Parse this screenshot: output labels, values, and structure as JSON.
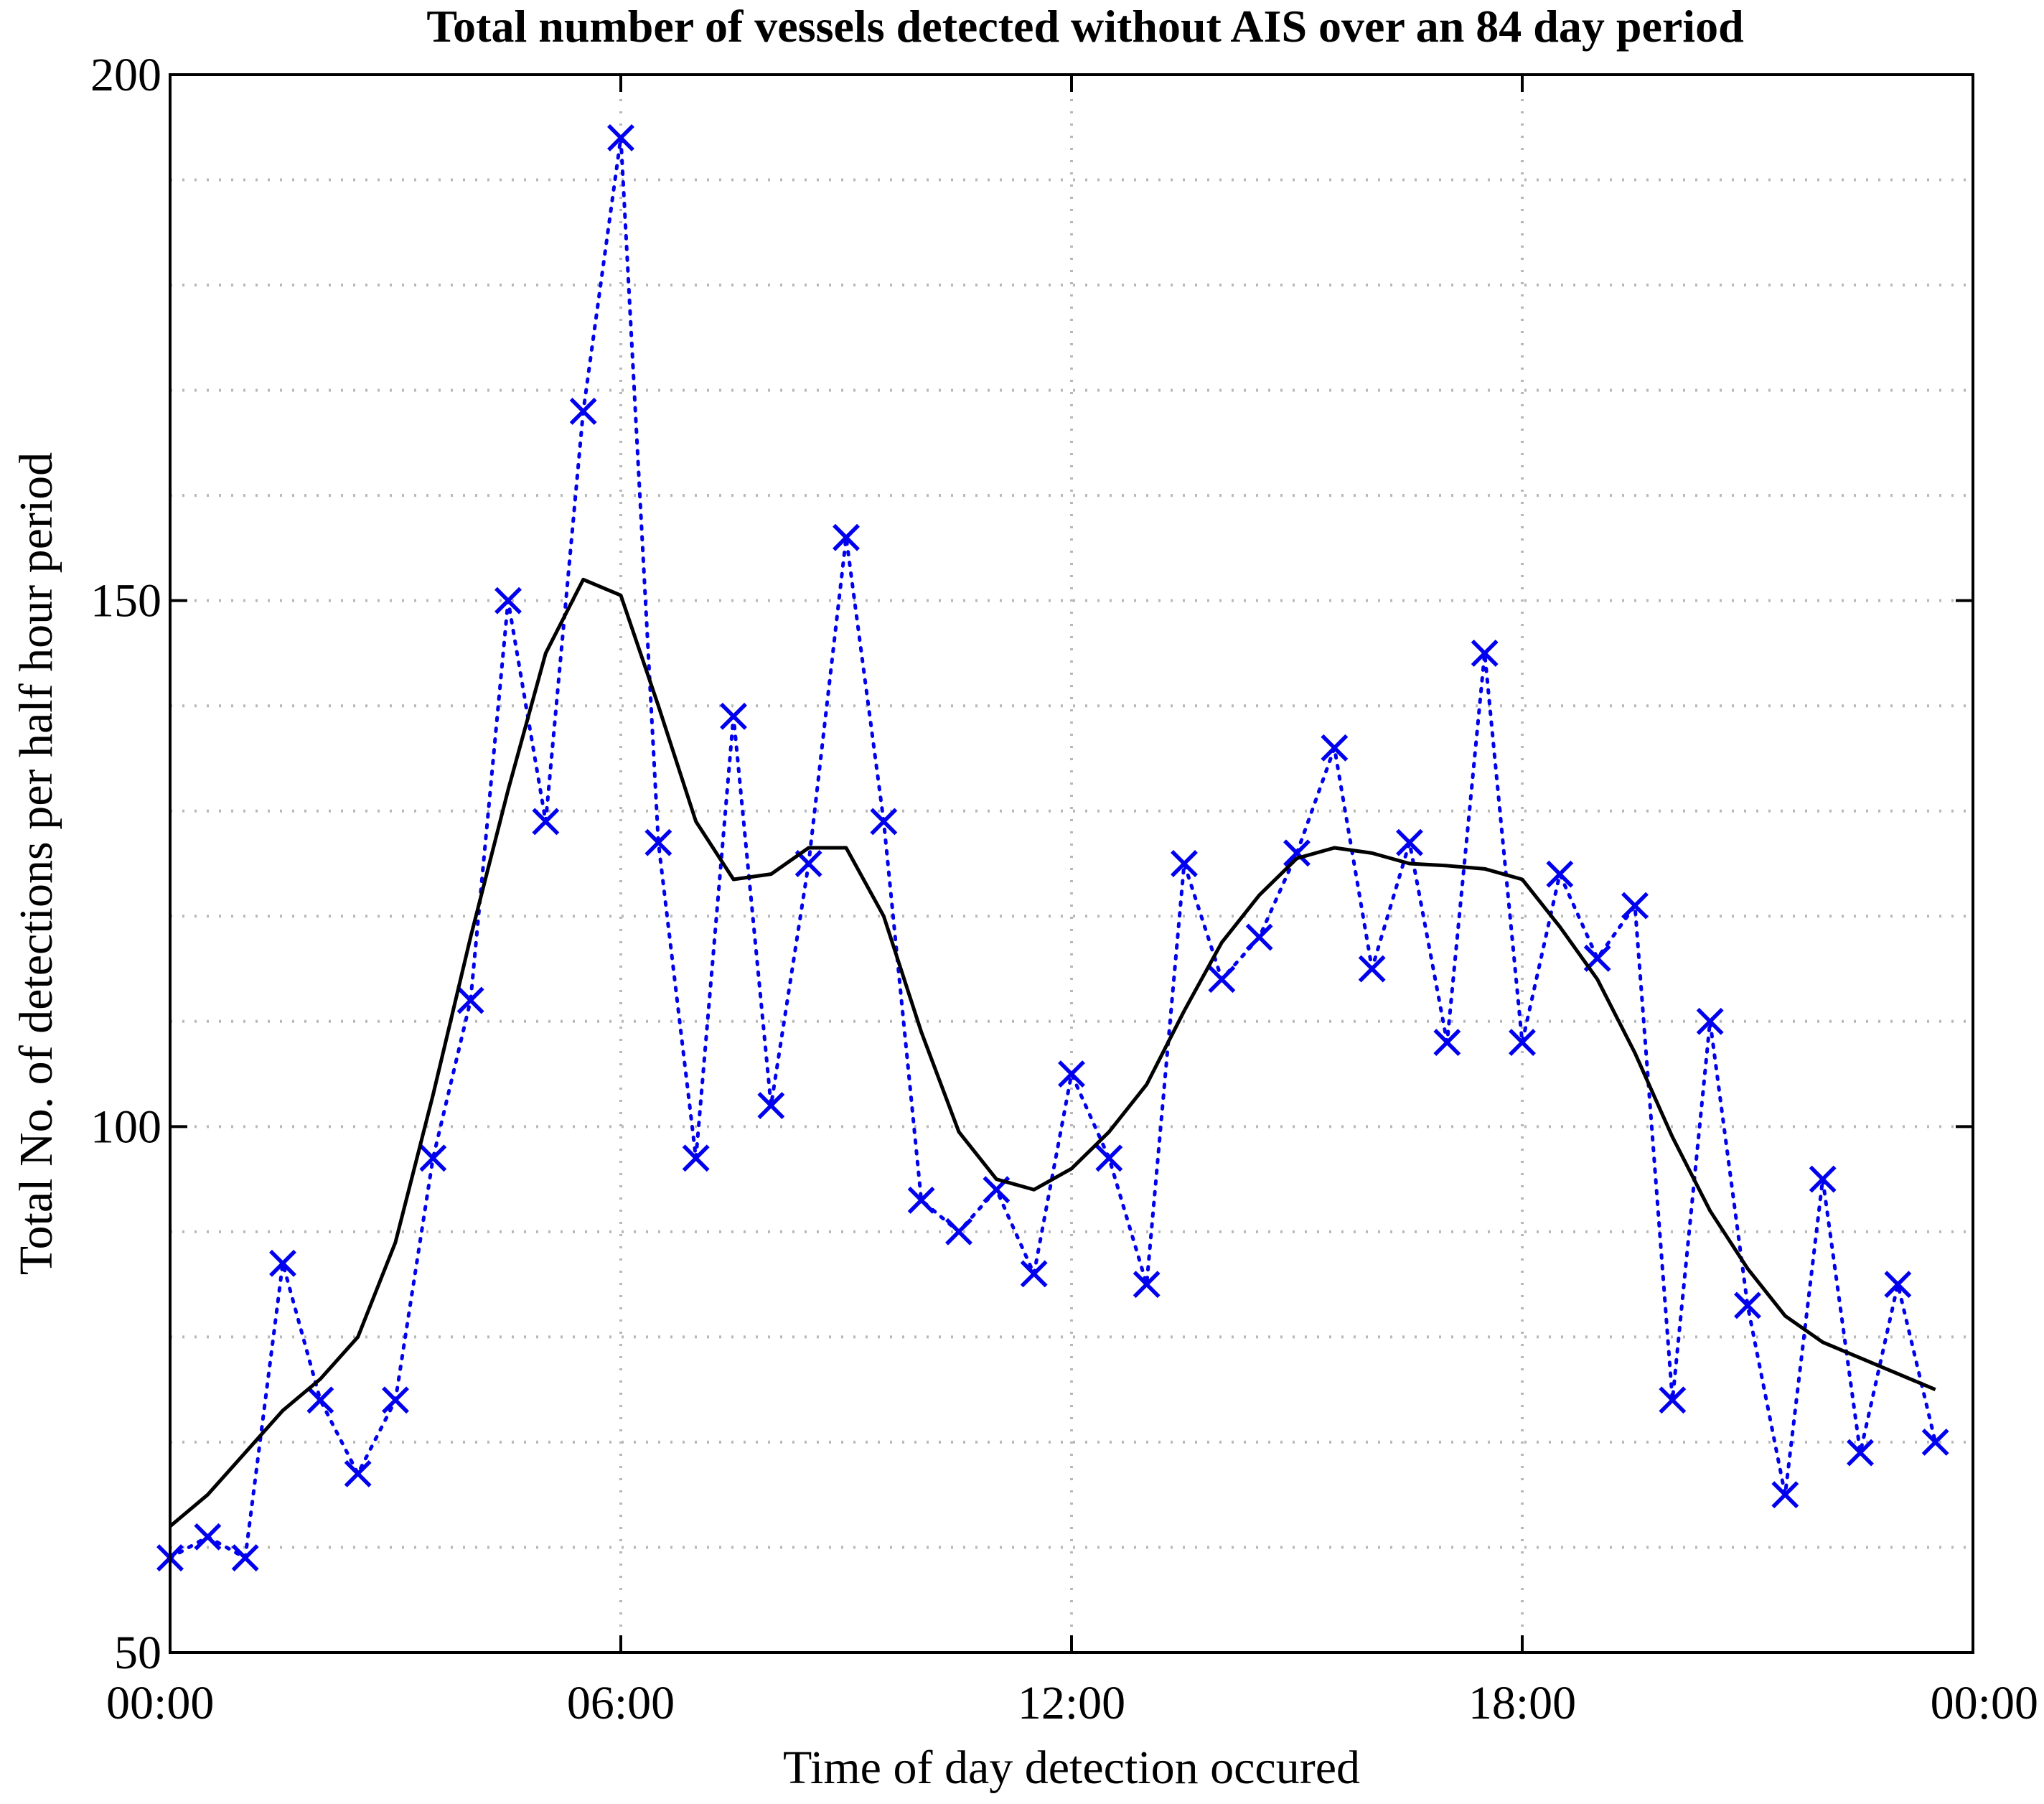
{
  "chart_data": {
    "type": "line",
    "title": "Total number of vessels detected without AIS over an 84 day period",
    "xlabel": "Time of day detection occured",
    "ylabel": "Total No. of detections per half hour period",
    "xlim": [
      0,
      24
    ],
    "ylim": [
      50,
      200
    ],
    "xticks": [
      0,
      6,
      12,
      18,
      24
    ],
    "xtick_labels": [
      "00:00",
      "06:00",
      "12:00",
      "18:00",
      "00:00"
    ],
    "yticks": [
      50,
      100,
      150,
      200
    ],
    "ytick_labels": [
      "50",
      "100",
      "150",
      "200"
    ],
    "grid": true,
    "series": [
      {
        "style": "dotted-x",
        "color": "#0000ee",
        "x": [
          0,
          0.5,
          1,
          1.5,
          2,
          2.5,
          3,
          3.5,
          4,
          4.5,
          5,
          5.5,
          6,
          6.5,
          7,
          7.5,
          8,
          8.5,
          9,
          9.5,
          10,
          10.5,
          11,
          11.5,
          12,
          12.5,
          13,
          13.5,
          14,
          14.5,
          15,
          15.5,
          16,
          16.5,
          17,
          17.5,
          18,
          18.5,
          19,
          19.5,
          20,
          20.5,
          21,
          21.5,
          22,
          22.5,
          23,
          23.5
        ],
        "y": [
          59,
          61,
          59,
          87,
          74,
          67,
          74,
          97,
          112,
          150,
          129,
          168,
          194,
          127,
          97,
          139,
          102,
          125,
          156,
          129,
          93,
          90,
          94,
          86,
          105,
          97,
          85,
          125,
          114,
          118,
          126,
          136,
          115,
          127,
          108,
          145,
          108,
          124,
          116,
          121,
          74,
          110,
          83,
          65,
          95,
          69,
          85,
          70
        ]
      },
      {
        "style": "solid",
        "color": "#000000",
        "x": [
          0,
          0.5,
          1,
          1.5,
          2,
          2.5,
          3,
          3.5,
          4,
          4.5,
          5,
          5.5,
          6,
          6.5,
          7,
          7.5,
          8,
          8.5,
          9,
          9.5,
          10,
          10.5,
          11,
          11.5,
          12,
          12.5,
          13,
          13.5,
          14,
          14.5,
          15,
          15.5,
          16,
          16.5,
          17,
          17.5,
          18,
          18.5,
          19,
          19.5,
          20,
          20.5,
          21,
          21.5,
          22,
          22.5,
          23,
          23.5
        ],
        "y": [
          62,
          65,
          69,
          73,
          76,
          80,
          89,
          103,
          118,
          132,
          145,
          152,
          150.5,
          140,
          129,
          123.5,
          124,
          126.5,
          126.5,
          120,
          109,
          99.5,
          95,
          94,
          96,
          99.5,
          104,
          111,
          117.5,
          122,
          125.5,
          126.5,
          126,
          125,
          124.8,
          124.5,
          123.5,
          119,
          114,
          107,
          99,
          92,
          86.5,
          82,
          79.5,
          78,
          76.5,
          75
        ]
      }
    ]
  }
}
